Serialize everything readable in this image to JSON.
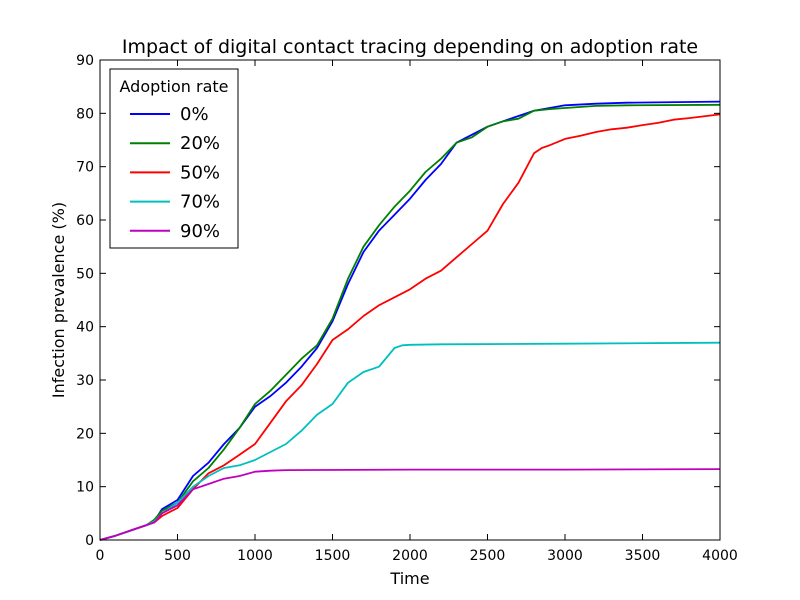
{
  "chart_data": {
    "type": "line",
    "title": "Impact of digital contact tracing depending on adoption rate",
    "xlabel": "Time",
    "ylabel": "Infection prevalence (%)",
    "xlim": [
      0,
      4000
    ],
    "ylim": [
      0,
      90
    ],
    "xticks": [
      0,
      500,
      1000,
      1500,
      2000,
      2500,
      3000,
      3500,
      4000
    ],
    "yticks": [
      0,
      10,
      20,
      30,
      40,
      50,
      60,
      70,
      80,
      90
    ],
    "grid": false,
    "legend": {
      "title": "Adoption rate",
      "placement": "top-left"
    },
    "series": [
      {
        "name": "0%",
        "color": "#0000ff",
        "x": [
          0,
          100,
          200,
          300,
          350,
          400,
          500,
          600,
          700,
          800,
          900,
          1000,
          1100,
          1200,
          1300,
          1400,
          1500,
          1600,
          1700,
          1800,
          1900,
          2000,
          2100,
          2200,
          2300,
          2400,
          2500,
          2600,
          2700,
          2800,
          2900,
          3000,
          3200,
          3400,
          4000
        ],
        "y": [
          0,
          0.8,
          1.8,
          2.8,
          3.5,
          5.8,
          7.5,
          12,
          14.5,
          18,
          21,
          25,
          27,
          29.5,
          32.5,
          36,
          41,
          48,
          54,
          58,
          61,
          64,
          67.5,
          70.5,
          74.5,
          76,
          77.5,
          78.5,
          79.5,
          80.5,
          81,
          81.5,
          81.8,
          82,
          82.2
        ]
      },
      {
        "name": "20%",
        "color": "#008000",
        "x": [
          0,
          100,
          200,
          300,
          350,
          400,
          500,
          600,
          700,
          800,
          900,
          1000,
          1100,
          1200,
          1300,
          1400,
          1500,
          1600,
          1700,
          1800,
          1900,
          2000,
          2100,
          2200,
          2300,
          2400,
          2500,
          2600,
          2700,
          2800,
          2900,
          3000,
          3200,
          3400,
          4000
        ],
        "y": [
          0,
          0.8,
          1.8,
          2.8,
          3.8,
          5.5,
          7,
          11,
          13.5,
          17,
          21,
          25.5,
          28,
          31,
          34,
          36.5,
          41.5,
          49,
          55,
          59,
          62.5,
          65.5,
          69,
          71.5,
          74.5,
          75.5,
          77.5,
          78.5,
          79,
          80.5,
          80.8,
          81,
          81.4,
          81.5,
          81.6
        ]
      },
      {
        "name": "50%",
        "color": "#ff0000",
        "x": [
          0,
          100,
          200,
          300,
          350,
          400,
          500,
          600,
          700,
          800,
          900,
          1000,
          1100,
          1200,
          1300,
          1400,
          1500,
          1600,
          1700,
          1800,
          1900,
          2000,
          2100,
          2200,
          2300,
          2400,
          2500,
          2600,
          2700,
          2800,
          2850,
          2900,
          3000,
          3100,
          3200,
          3300,
          3400,
          3500,
          3600,
          3700,
          3800,
          4000
        ],
        "y": [
          0,
          0.8,
          1.8,
          2.8,
          3.3,
          4.5,
          6,
          9.5,
          12.5,
          14,
          16,
          18,
          22,
          26,
          29,
          33,
          37.5,
          39.5,
          42,
          44,
          45.5,
          47,
          49,
          50.5,
          53,
          55.5,
          58,
          63,
          67,
          72.5,
          73.5,
          74,
          75.2,
          75.8,
          76.5,
          77,
          77.3,
          77.8,
          78.2,
          78.8,
          79.1,
          79.8
        ]
      },
      {
        "name": "70%",
        "color": "#00bfbf",
        "x": [
          0,
          100,
          200,
          300,
          350,
          400,
          500,
          600,
          700,
          800,
          900,
          1000,
          1100,
          1200,
          1300,
          1400,
          1500,
          1600,
          1700,
          1800,
          1900,
          1950,
          2000,
          2200,
          3000,
          4000
        ],
        "y": [
          0,
          0.8,
          1.8,
          2.8,
          3.5,
          5,
          7,
          10,
          12,
          13.5,
          14,
          15,
          16.5,
          18,
          20.5,
          23.5,
          25.5,
          29.5,
          31.5,
          32.5,
          36,
          36.5,
          36.6,
          36.7,
          36.8,
          37
        ]
      },
      {
        "name": "90%",
        "color": "#bf00bf",
        "x": [
          0,
          100,
          200,
          300,
          350,
          400,
          500,
          600,
          700,
          800,
          900,
          1000,
          1100,
          1200,
          2000,
          3000,
          4000
        ],
        "y": [
          0,
          0.8,
          1.8,
          2.8,
          3.3,
          5,
          6.5,
          9.5,
          10.5,
          11.5,
          12,
          12.8,
          13,
          13.1,
          13.2,
          13.2,
          13.3
        ]
      }
    ]
  }
}
